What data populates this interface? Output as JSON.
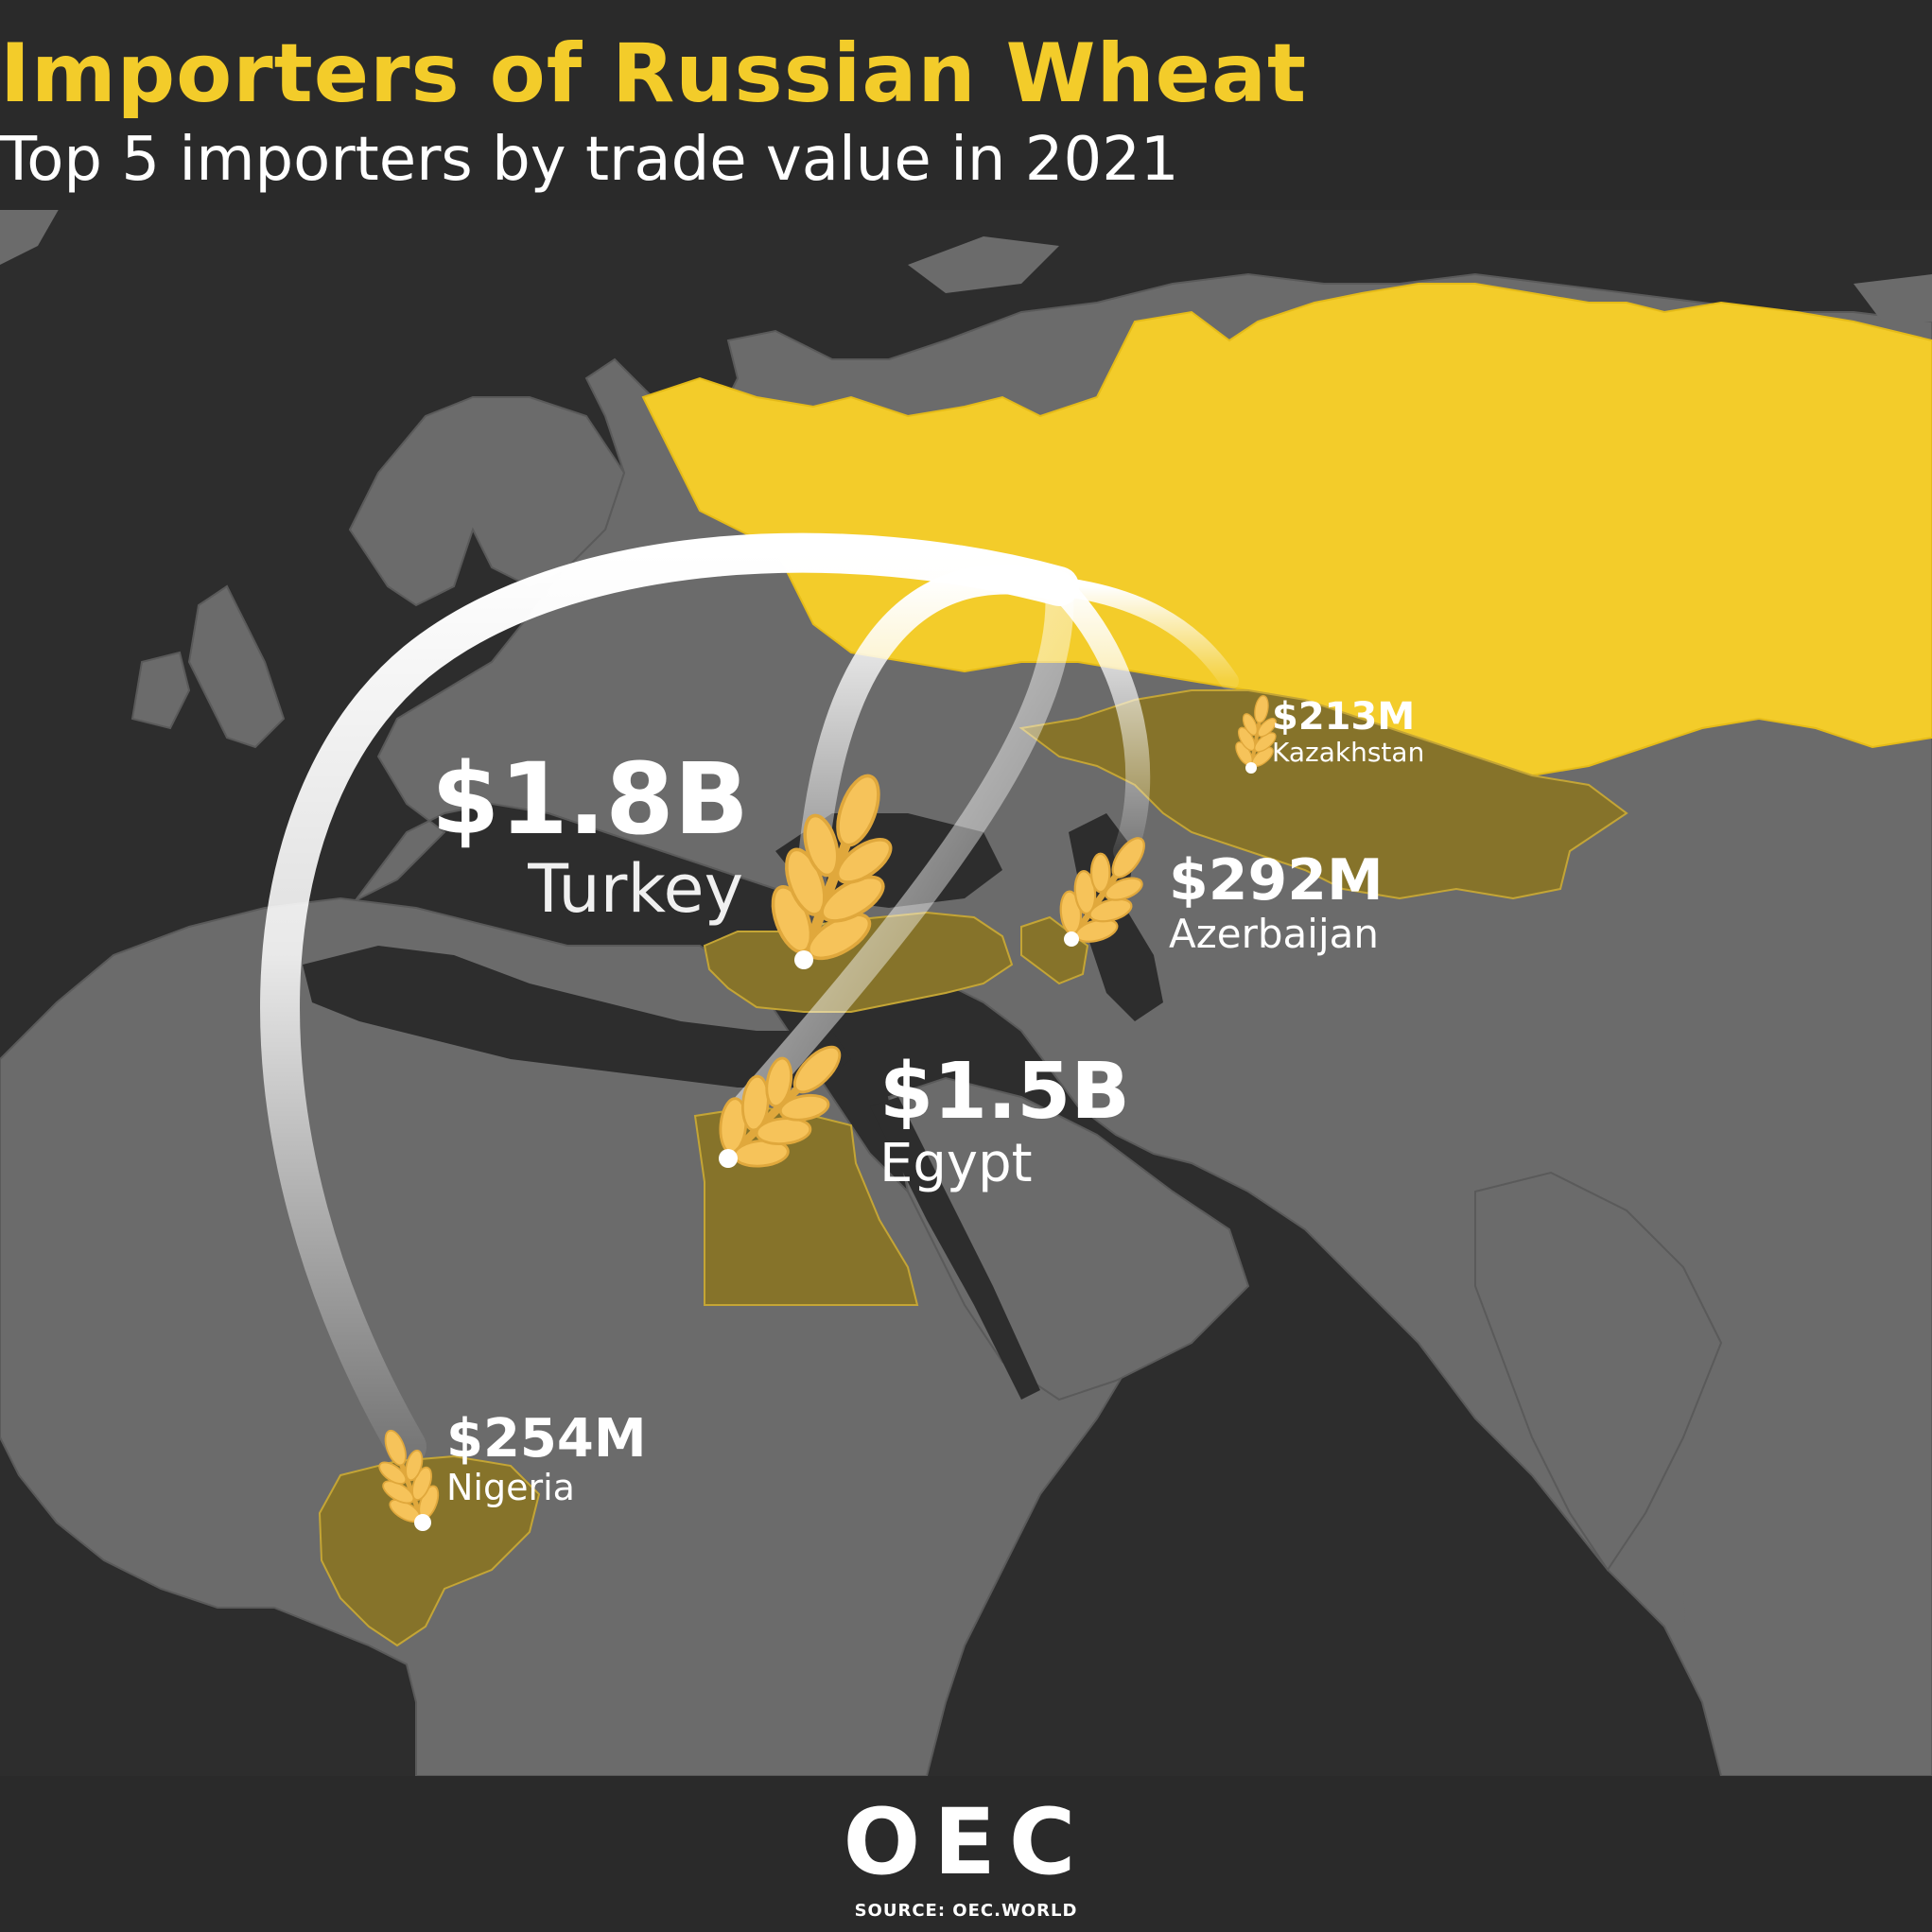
{
  "title": "Importers of Russian Wheat",
  "subtitle": "Top 5 importers by trade value in 2021",
  "exporter": "Russia",
  "importers": [
    {
      "id": "turkey",
      "value": "$1.8B",
      "name": "Turkey"
    },
    {
      "id": "egypt",
      "value": "$1.5B",
      "name": "Egypt"
    },
    {
      "id": "azerbaijan",
      "value": "$292M",
      "name": "Azerbaijan"
    },
    {
      "id": "nigeria",
      "value": "$254M",
      "name": "Nigeria"
    },
    {
      "id": "kazakhstan",
      "value": "$213M",
      "name": "Kazakhstan"
    }
  ],
  "icons": {
    "importer_marker": "wheat-icon",
    "logo": "oec-logo"
  },
  "colors": {
    "background": "#2d2d2d",
    "land": "#6b6b6b",
    "exporter_fill": "#f3cc2a",
    "importer_fill": "#86732a",
    "title": "#f3cc2a",
    "wheat": "#f6c35a",
    "arc": "#ffffff"
  },
  "footer": {
    "logo_text": "OEC",
    "source": "SOURCE: OEC.WORLD"
  }
}
